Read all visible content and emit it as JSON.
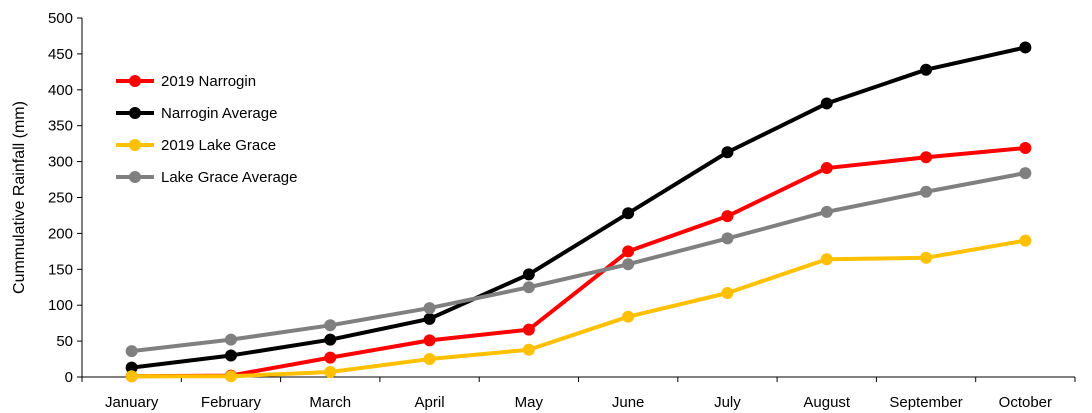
{
  "chart_data": {
    "type": "line",
    "title": "",
    "xlabel": "",
    "ylabel": "Cummulative Rainfall (mm)",
    "ylim": [
      0,
      500
    ],
    "yticks": [
      0,
      50,
      100,
      150,
      200,
      250,
      300,
      350,
      400,
      450,
      500
    ],
    "grid": false,
    "legend_position": "top-left",
    "categories": [
      "January",
      "February",
      "March",
      "April",
      "May",
      "June",
      "July",
      "August",
      "September",
      "October"
    ],
    "series": [
      {
        "name": "2019 Narrogin",
        "color": "#ff0000",
        "values": [
          1,
          2,
          27,
          51,
          66,
          175,
          224,
          291,
          306,
          319
        ]
      },
      {
        "name": "Narrogin Average",
        "color": "#000000",
        "values": [
          13,
          30,
          52,
          81,
          143,
          228,
          313,
          381,
          428,
          459
        ]
      },
      {
        "name": "2019 Lake Grace",
        "color": "#ffc000",
        "values": [
          1,
          1,
          7,
          25,
          38,
          84,
          117,
          164,
          166,
          190
        ]
      },
      {
        "name": "Lake Grace Average",
        "color": "#808080",
        "values": [
          36,
          52,
          72,
          96,
          125,
          157,
          193,
          230,
          258,
          284
        ]
      }
    ]
  }
}
